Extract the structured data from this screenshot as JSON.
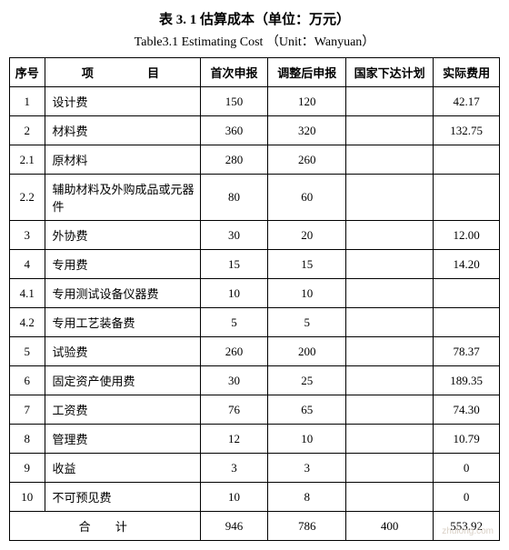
{
  "title_cn": "表 3. 1  估算成本（单位：万元）",
  "title_en": "Table3.1  Estimating Cost （Unit：Wanyuan）",
  "columns": {
    "seq": "序号",
    "item": "项  目",
    "first": "首次申报",
    "adjusted": "调整后申报",
    "plan": "国家下达计划",
    "actual": "实际费用"
  },
  "rows": [
    {
      "seq": "1",
      "item": "设计费",
      "first": "150",
      "adjusted": "120",
      "plan": "",
      "actual": "42.17"
    },
    {
      "seq": "2",
      "item": "材料费",
      "first": "360",
      "adjusted": "320",
      "plan": "",
      "actual": "132.75"
    },
    {
      "seq": "2.1",
      "item": "原材料",
      "first": "280",
      "adjusted": "260",
      "plan": "",
      "actual": ""
    },
    {
      "seq": "2.2",
      "item": "辅助材料及外购成品或元器件",
      "first": "80",
      "adjusted": "60",
      "plan": "",
      "actual": ""
    },
    {
      "seq": "3",
      "item": "外协费",
      "first": "30",
      "adjusted": "20",
      "plan": "",
      "actual": "12.00"
    },
    {
      "seq": "4",
      "item": "专用费",
      "first": "15",
      "adjusted": "15",
      "plan": "",
      "actual": "14.20"
    },
    {
      "seq": "4.1",
      "item": "专用测试设备仪器费",
      "first": "10",
      "adjusted": "10",
      "plan": "",
      "actual": ""
    },
    {
      "seq": "4.2",
      "item": "专用工艺装备费",
      "first": "5",
      "adjusted": "5",
      "plan": "",
      "actual": ""
    },
    {
      "seq": "5",
      "item": "试验费",
      "first": "260",
      "adjusted": "200",
      "plan": "",
      "actual": "78.37"
    },
    {
      "seq": "6",
      "item": "固定资产使用费",
      "first": "30",
      "adjusted": "25",
      "plan": "",
      "actual": "189.35"
    },
    {
      "seq": "7",
      "item": "工资费",
      "first": "76",
      "adjusted": "65",
      "plan": "",
      "actual": "74.30"
    },
    {
      "seq": "8",
      "item": "管理费",
      "first": "12",
      "adjusted": "10",
      "plan": "",
      "actual": "10.79"
    },
    {
      "seq": "9",
      "item": "收益",
      "first": "3",
      "adjusted": "3",
      "plan": "",
      "actual": "0"
    },
    {
      "seq": "10",
      "item": "不可预见费",
      "first": "10",
      "adjusted": "8",
      "plan": "",
      "actual": "0"
    }
  ],
  "total": {
    "label": "合 计",
    "first": "946",
    "adjusted": "786",
    "plan": "400",
    "actual": "553.92"
  },
  "watermark": "zhulong.com"
}
